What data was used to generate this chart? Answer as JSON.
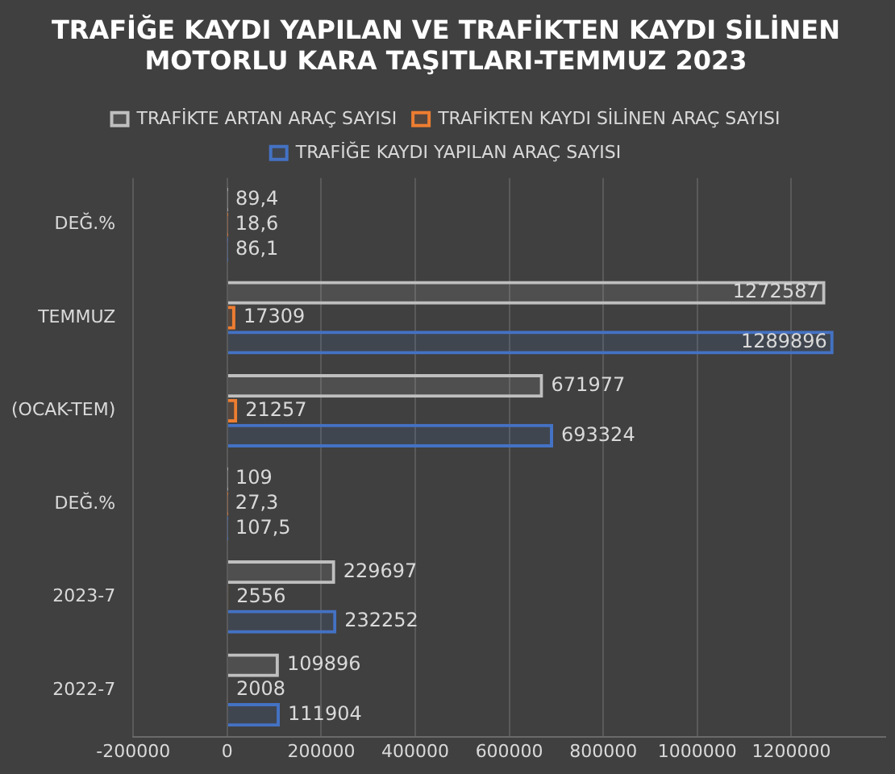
{
  "chart_data": {
    "type": "bar",
    "orientation": "horizontal",
    "title": "TRAFİĞE KAYDI YAPILAN VE TRAFİKTEN KAYDI SİLİNEN MOTORLU KARA TAŞITLARI-TEMMUZ 2023",
    "categories": [
      "DEĞ.%",
      "TEMMUZ",
      "(OCAK-TEM)",
      "DEĞ.%",
      "2023-7",
      "2022-7"
    ],
    "series": [
      {
        "name": "TRAFİKTE ARTAN ARAÇ SAYISI",
        "color": "#bfbfbf",
        "values": [
          89.4,
          1272587,
          671977,
          109,
          229697,
          109896
        ],
        "value_labels": [
          "89,4",
          "1272587",
          "671977",
          "109",
          "229697",
          "109896"
        ]
      },
      {
        "name": "TRAFİKTEN KAYDI SİLİNEN ARAÇ SAYISI",
        "color": "#ed7d31",
        "values": [
          18.6,
          17309,
          21257,
          27.3,
          2556,
          2008
        ],
        "value_labels": [
          "18,6",
          "17309",
          "21257",
          "27,3",
          "2556",
          "2008"
        ]
      },
      {
        "name": "TRAFİĞE KAYDI YAPILAN ARAÇ SAYISI",
        "color": "#4472c4",
        "values": [
          86.1,
          1289896,
          693324,
          107.5,
          232252,
          111904
        ],
        "value_labels": [
          "86,1",
          "1289896",
          "693324",
          "107,5",
          "232252",
          "111904"
        ]
      }
    ],
    "xlim": [
      -200000,
      1400000
    ],
    "xticks": [
      -200000,
      0,
      200000,
      400000,
      600000,
      800000,
      1000000,
      1200000
    ],
    "grid": "x",
    "legend": "top"
  }
}
